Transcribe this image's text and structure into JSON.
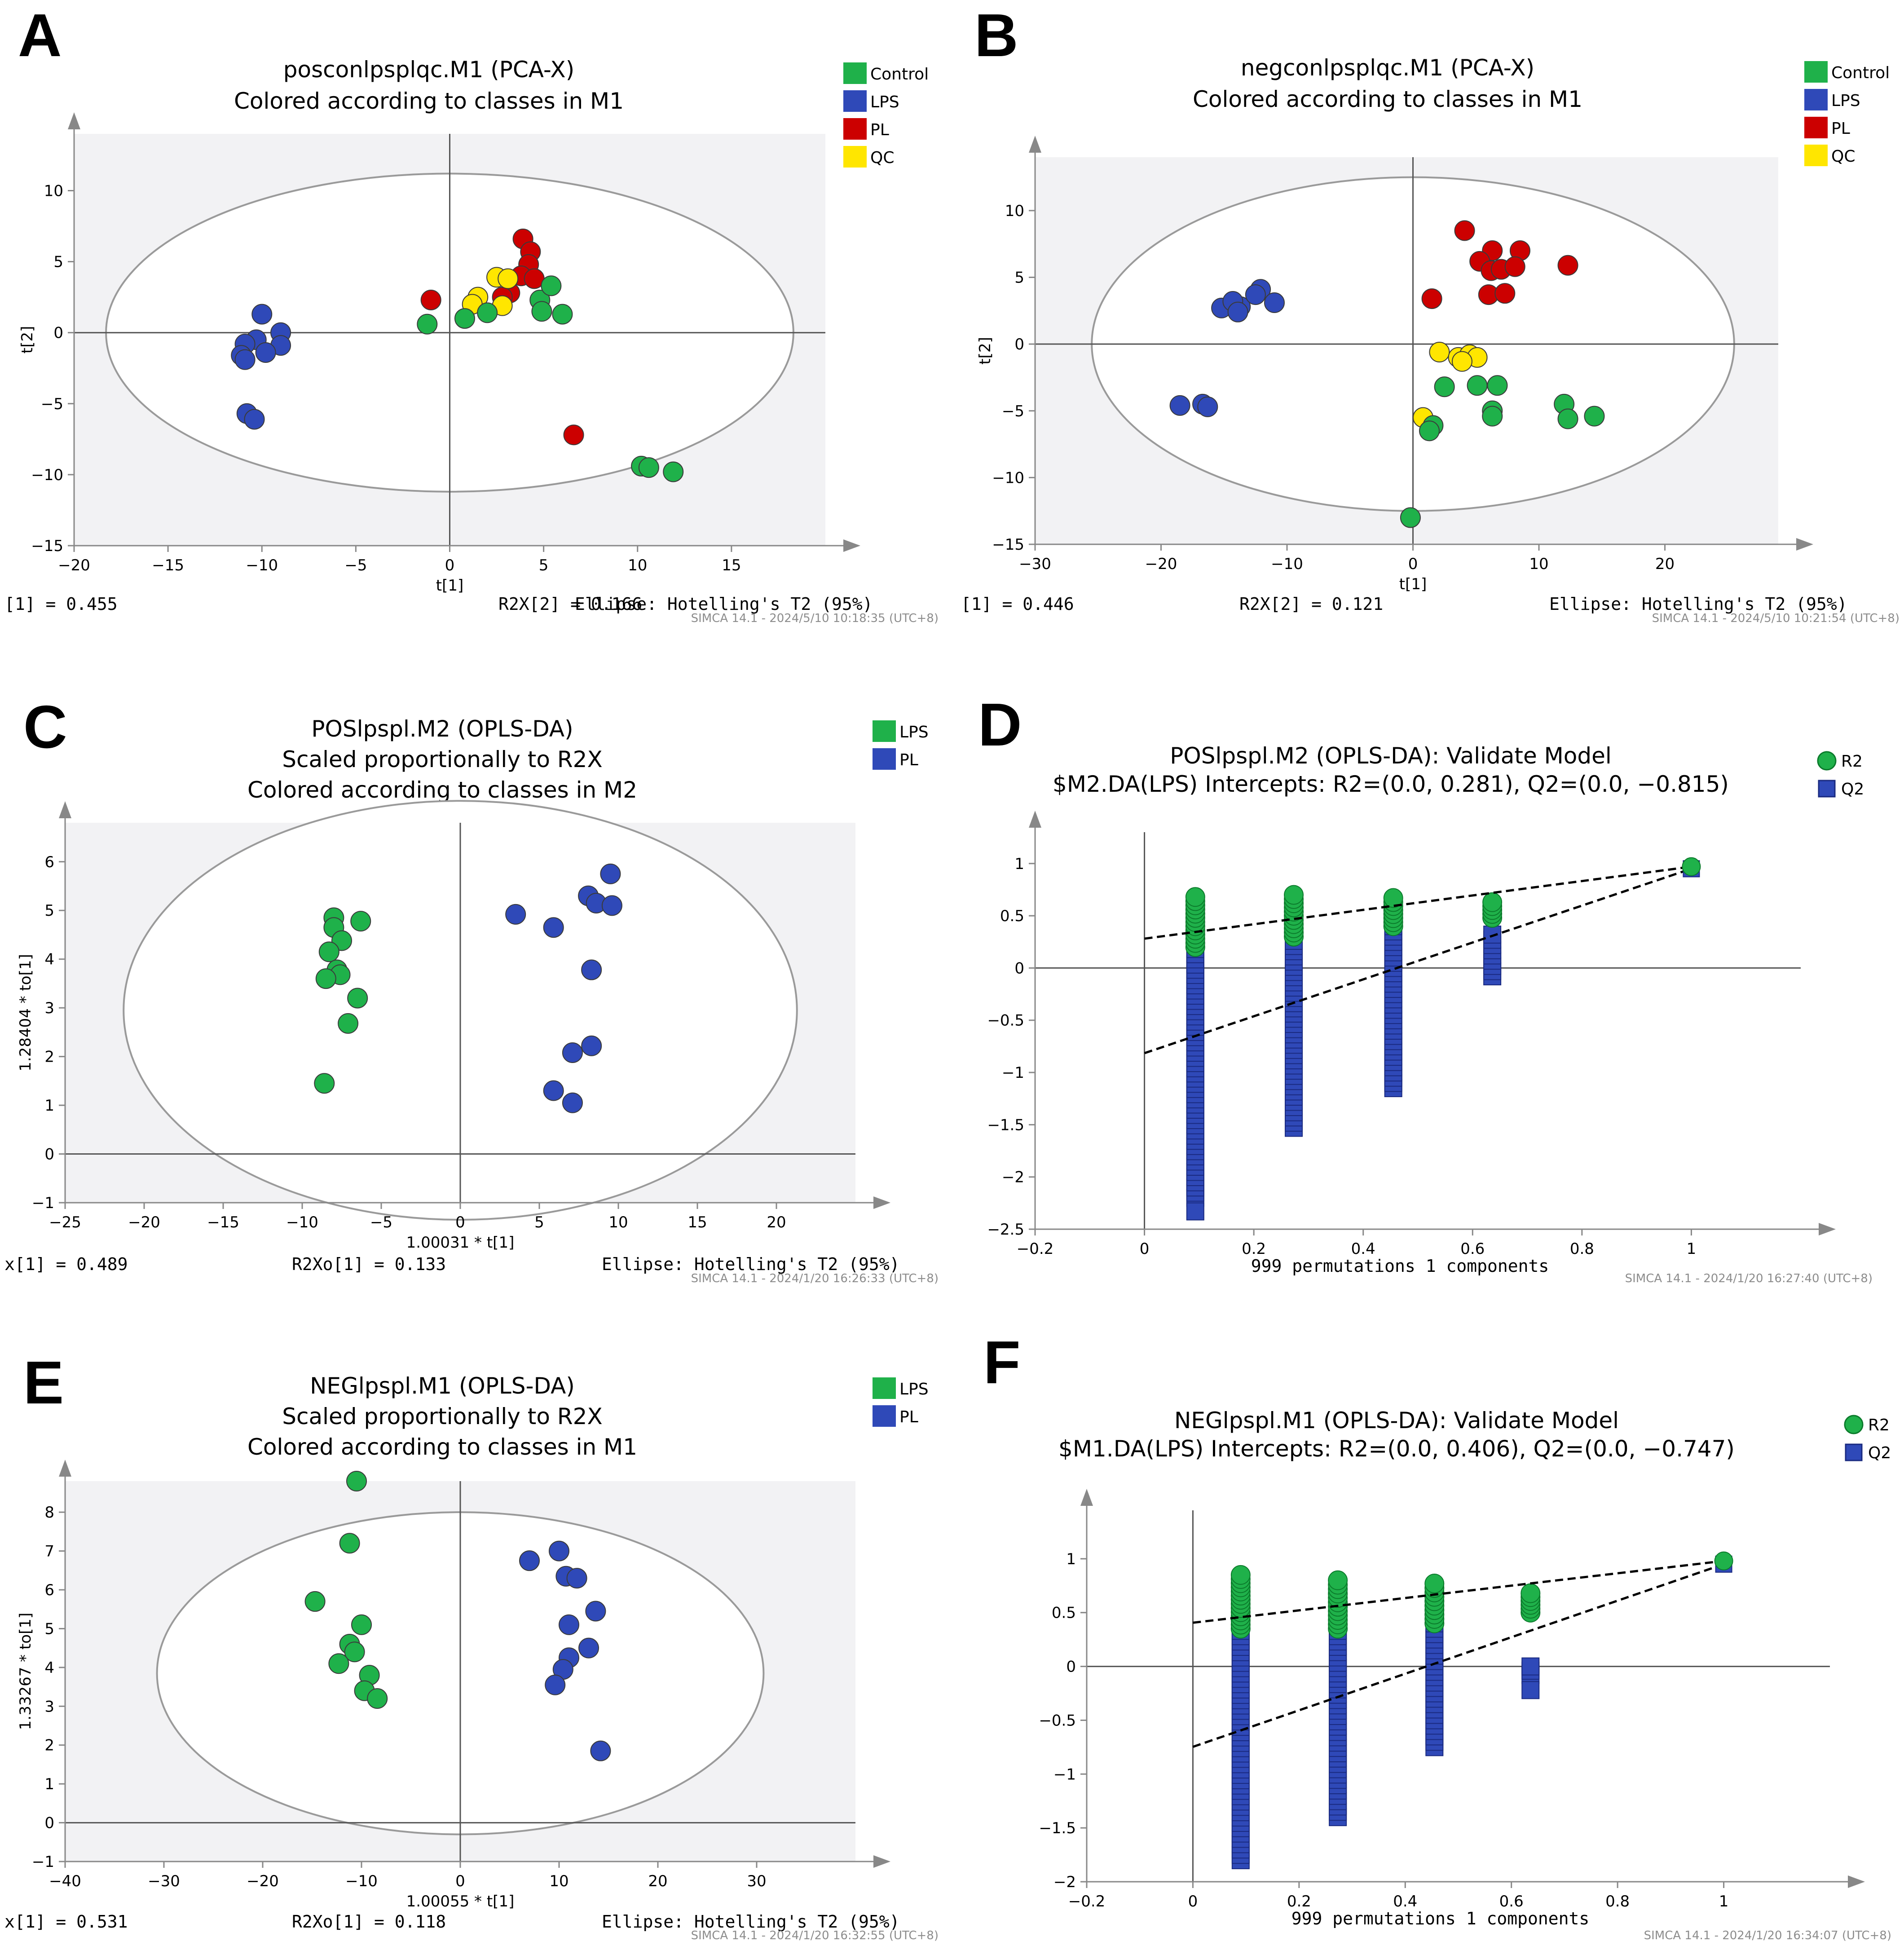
{
  "figure": {
    "colors": {
      "control": "#1fb14a",
      "lps": "#2f49b8",
      "pl": "#cc0000",
      "qc": "#ffe600",
      "plot_bg": "#f2f2f4",
      "ellipse": "#9a9a9a"
    }
  },
  "chart_data": [
    {
      "id": "A",
      "type": "scatter",
      "panel_letter": "A",
      "title": [
        "posconlpsplqc.M1 (PCA-X)",
        "Colored according to classes in M1"
      ],
      "xlabel": "t[1]",
      "ylabel": "t[2]",
      "xlim": [
        -20,
        20
      ],
      "ylim": [
        -15,
        14
      ],
      "xticks": [
        -20,
        -15,
        -10,
        -5,
        0,
        5,
        10,
        15
      ],
      "yticks": [
        -15,
        -10,
        -5,
        0,
        5,
        10
      ],
      "ellipse": {
        "cx": 0,
        "cy": 0,
        "rx": 18.3,
        "ry": 11.2
      },
      "legend": [
        "Control",
        "LPS",
        "PL",
        "QC"
      ],
      "footer": {
        "left": "[1] = 0.455",
        "mid": "R2X[2] = 0.166",
        "right": "Ellipse: Hotelling's T2 (95%)"
      },
      "stamp": "SIMCA 14.1 - 2024/5/10 10:18:35 (UTC+8)",
      "series": [
        {
          "name": "LPS",
          "color_key": "lps",
          "points": [
            [
              -10.0,
              1.3
            ],
            [
              -10.3,
              -0.5
            ],
            [
              -9.0,
              0.0
            ],
            [
              -9.0,
              -0.9
            ],
            [
              -10.9,
              -0.8
            ],
            [
              -11.1,
              -1.6
            ],
            [
              -10.9,
              -1.9
            ],
            [
              -9.8,
              -1.4
            ],
            [
              -10.8,
              -5.7
            ],
            [
              -10.4,
              -6.1
            ]
          ]
        },
        {
          "name": "PL",
          "color_key": "pl",
          "points": [
            [
              -1.0,
              2.3
            ],
            [
              3.9,
              6.6
            ],
            [
              4.3,
              5.7
            ],
            [
              4.2,
              4.8
            ],
            [
              3.8,
              4.0
            ],
            [
              4.5,
              3.8
            ],
            [
              3.2,
              2.8
            ],
            [
              2.8,
              2.5
            ],
            [
              6.6,
              -7.2
            ]
          ]
        },
        {
          "name": "QC",
          "color_key": "qc",
          "points": [
            [
              2.5,
              3.9
            ],
            [
              3.1,
              3.8
            ],
            [
              1.5,
              2.5
            ],
            [
              1.2,
              2.0
            ],
            [
              2.8,
              1.9
            ]
          ]
        },
        {
          "name": "Control",
          "color_key": "control",
          "points": [
            [
              -1.2,
              0.6
            ],
            [
              0.8,
              1.0
            ],
            [
              2.0,
              1.4
            ],
            [
              4.8,
              2.3
            ],
            [
              5.4,
              3.3
            ],
            [
              4.9,
              1.5
            ],
            [
              6.0,
              1.3
            ],
            [
              10.2,
              -9.4
            ],
            [
              10.6,
              -9.5
            ],
            [
              11.9,
              -9.8
            ]
          ]
        }
      ]
    },
    {
      "id": "B",
      "type": "scatter",
      "panel_letter": "B",
      "title": [
        "negconlpsplqc.M1 (PCA-X)",
        "Colored according to classes in M1"
      ],
      "xlabel": "t[1]",
      "ylabel": "t[2]",
      "xlim": [
        -30,
        29
      ],
      "ylim": [
        -15,
        14
      ],
      "xticks": [
        -30,
        -20,
        -10,
        0,
        10,
        20
      ],
      "yticks": [
        -15,
        -10,
        -5,
        0,
        5,
        10
      ],
      "ellipse": {
        "cx": 0,
        "cy": 0,
        "rx": 25.5,
        "ry": 12.5
      },
      "legend": [
        "Control",
        "LPS",
        "PL",
        "QC"
      ],
      "footer": {
        "left": "[1] = 0.446",
        "mid": "R2X[2] = 0.121",
        "right": "Ellipse: Hotelling's T2 (95%)"
      },
      "stamp": "SIMCA 14.1 - 2024/5/10 10:21:54 (UTC+8)",
      "series": [
        {
          "name": "LPS",
          "color_key": "lps",
          "points": [
            [
              -12.1,
              4.1
            ],
            [
              -13.7,
              2.8
            ],
            [
              -15.2,
              2.7
            ],
            [
              -14.3,
              3.2
            ],
            [
              -12.5,
              3.7
            ],
            [
              -11.0,
              3.1
            ],
            [
              -13.9,
              2.4
            ],
            [
              -18.5,
              -4.6
            ],
            [
              -16.7,
              -4.5
            ],
            [
              -16.3,
              -4.7
            ]
          ]
        },
        {
          "name": "PL",
          "color_key": "pl",
          "points": [
            [
              4.1,
              8.5
            ],
            [
              6.3,
              7.0
            ],
            [
              8.5,
              7.0
            ],
            [
              5.3,
              6.2
            ],
            [
              6.2,
              5.5
            ],
            [
              7.0,
              5.6
            ],
            [
              8.1,
              5.8
            ],
            [
              12.3,
              5.9
            ],
            [
              6.0,
              3.7
            ],
            [
              7.3,
              3.8
            ],
            [
              1.5,
              3.4
            ]
          ]
        },
        {
          "name": "QC",
          "color_key": "qc",
          "points": [
            [
              2.1,
              -0.6
            ],
            [
              3.6,
              -1.0
            ],
            [
              4.5,
              -0.8
            ],
            [
              5.1,
              -1.0
            ],
            [
              3.9,
              -1.3
            ],
            [
              0.8,
              -5.5
            ]
          ]
        },
        {
          "name": "Control",
          "color_key": "control",
          "points": [
            [
              2.5,
              -3.2
            ],
            [
              5.1,
              -3.1
            ],
            [
              6.7,
              -3.1
            ],
            [
              6.3,
              -5.0
            ],
            [
              6.3,
              -5.4
            ],
            [
              12.0,
              -4.5
            ],
            [
              12.3,
              -5.6
            ],
            [
              14.4,
              -5.4
            ],
            [
              1.6,
              -6.1
            ],
            [
              1.3,
              -6.5
            ],
            [
              -0.2,
              -13.0
            ]
          ]
        }
      ]
    },
    {
      "id": "C",
      "type": "scatter",
      "panel_letter": "C",
      "title": [
        "POSlpspl.M2 (OPLS-DA)",
        "Scaled proportionally to R2X",
        "Colored according to classes in M2"
      ],
      "xlabel": "1.00031 * t[1]",
      "ylabel": "1.28404 * to[1]",
      "xlim": [
        -25,
        25
      ],
      "ylim": [
        -1,
        6.8
      ],
      "xticks": [
        -25,
        -20,
        -15,
        -10,
        -5,
        0,
        5,
        10,
        15,
        20
      ],
      "yticks": [
        -1,
        0,
        1,
        2,
        3,
        4,
        5,
        6
      ],
      "ellipse": {
        "cx": 0,
        "cy": 2.95,
        "rx": 21.3,
        "ry": 4.3
      },
      "legend": [
        "LPS",
        "PL"
      ],
      "footer": {
        "left": "x[1] = 0.489",
        "mid": "R2Xo[1] = 0.133",
        "right": "Ellipse: Hotelling's T2 (95%)"
      },
      "stamp": "SIMCA 14.1 - 2024/1/20 16:26:33 (UTC+8)",
      "series": [
        {
          "name": "LPS",
          "color_key": "control",
          "points": [
            [
              -8.0,
              4.85
            ],
            [
              -8.0,
              4.65
            ],
            [
              -7.5,
              4.38
            ],
            [
              -6.3,
              4.78
            ],
            [
              -8.3,
              4.15
            ],
            [
              -7.8,
              3.78
            ],
            [
              -7.6,
              3.68
            ],
            [
              -8.5,
              3.6
            ],
            [
              -6.5,
              3.2
            ],
            [
              -7.1,
              2.68
            ],
            [
              -8.6,
              1.45
            ]
          ]
        },
        {
          "name": "PL",
          "color_key": "lps",
          "points": [
            [
              9.5,
              5.75
            ],
            [
              8.1,
              5.3
            ],
            [
              8.6,
              5.15
            ],
            [
              9.6,
              5.1
            ],
            [
              3.5,
              4.92
            ],
            [
              5.9,
              4.65
            ],
            [
              8.3,
              3.78
            ],
            [
              8.3,
              2.22
            ],
            [
              7.1,
              2.08
            ],
            [
              5.9,
              1.3
            ],
            [
              7.1,
              1.05
            ]
          ]
        }
      ]
    },
    {
      "id": "D",
      "type": "scatter",
      "panel_letter": "D",
      "title": [
        "POSlpspl.M2 (OPLS-DA): Validate Model",
        "$M2.DA(LPS) Intercepts: R2=(0.0, 0.281), Q2=(0.0, −0.815)"
      ],
      "xlabel": "999 permutations 1 components",
      "xlim": [
        -0.2,
        1.2
      ],
      "ylim": [
        -2.5,
        1.3
      ],
      "xticks": [
        -0.2,
        0,
        0.2,
        0.4,
        0.6,
        0.8,
        1
      ],
      "yticks": [
        -2.5,
        -2,
        -1.5,
        -1,
        -0.5,
        0,
        0.5,
        1
      ],
      "legend": [
        "R2",
        "Q2"
      ],
      "stamp": "SIMCA 14.1 - 2024/1/20 16:27:40 (UTC+8)",
      "intercepts": {
        "R2": 0.281,
        "Q2": -0.815
      },
      "permutation_columns": [
        {
          "x": 0.093,
          "R2_range": [
            0.2,
            0.68
          ],
          "Q2_range": [
            -2.2,
            0.38
          ],
          "Q2_extra": [
            -2.33
          ]
        },
        {
          "x": 0.273,
          "R2_range": [
            0.3,
            0.7
          ],
          "Q2_range": [
            -1.53,
            0.26
          ],
          "Q2_extra": []
        },
        {
          "x": 0.455,
          "R2_range": [
            0.4,
            0.67
          ],
          "Q2_range": [
            -1.15,
            0.45
          ],
          "Q2_extra": []
        },
        {
          "x": 0.636,
          "R2_range": [
            0.48,
            0.63
          ],
          "Q2_range": [
            -0.08,
            0.32
          ],
          "Q2_extra": []
        }
      ],
      "original": {
        "x": 1.0,
        "R2": 0.97,
        "Q2": 0.95
      }
    },
    {
      "id": "E",
      "type": "scatter",
      "panel_letter": "E",
      "title": [
        "NEGlpspl.M1 (OPLS-DA)",
        "Scaled proportionally to R2X",
        "Colored according to classes in M1"
      ],
      "xlabel": "1.00055 * t[1]",
      "ylabel": "1.33267 * to[1]",
      "xlim": [
        -40,
        40
      ],
      "ylim": [
        -1,
        8.8
      ],
      "xticks": [
        -40,
        -30,
        -20,
        -10,
        0,
        10,
        20,
        30
      ],
      "yticks": [
        -1,
        0,
        1,
        2,
        3,
        4,
        5,
        6,
        7,
        8
      ],
      "ellipse": {
        "cx": 0,
        "cy": 3.85,
        "rx": 30.7,
        "ry": 4.15
      },
      "legend": [
        "LPS",
        "PL"
      ],
      "footer": {
        "left": "x[1] = 0.531",
        "mid": "R2Xo[1] = 0.118",
        "right": "Ellipse: Hotelling's T2 (95%)"
      },
      "stamp": "SIMCA 14.1 - 2024/1/20 16:32:55 (UTC+8)",
      "series": [
        {
          "name": "LPS",
          "color_key": "control",
          "points": [
            [
              -10.5,
              8.8
            ],
            [
              -11.2,
              7.2
            ],
            [
              -14.7,
              5.7
            ],
            [
              -10.0,
              5.1
            ],
            [
              -11.2,
              4.6
            ],
            [
              -10.7,
              4.4
            ],
            [
              -12.3,
              4.1
            ],
            [
              -9.2,
              3.8
            ],
            [
              -9.7,
              3.4
            ],
            [
              -8.4,
              3.2
            ]
          ]
        },
        {
          "name": "PL",
          "color_key": "lps",
          "points": [
            [
              7.0,
              6.75
            ],
            [
              10.0,
              7.0
            ],
            [
              10.7,
              6.35
            ],
            [
              11.8,
              6.3
            ],
            [
              13.7,
              5.45
            ],
            [
              11.0,
              5.1
            ],
            [
              13.0,
              4.5
            ],
            [
              11.0,
              4.25
            ],
            [
              10.4,
              3.95
            ],
            [
              9.6,
              3.55
            ],
            [
              14.2,
              1.85
            ]
          ]
        }
      ]
    },
    {
      "id": "F",
      "type": "scatter",
      "panel_letter": "F",
      "title": [
        "NEGlpspl.M1 (OPLS-DA): Validate Model",
        "$M1.DA(LPS) Intercepts: R2=(0.0, 0.406), Q2=(0.0, −0.747)"
      ],
      "xlabel": "999 permutations 1 components",
      "xlim": [
        -0.2,
        1.2
      ],
      "ylim": [
        -2,
        1.45
      ],
      "xticks": [
        -0.2,
        0,
        0.2,
        0.4,
        0.6,
        0.8,
        1
      ],
      "yticks": [
        -2,
        -1.5,
        -1,
        -0.5,
        0,
        0.5,
        1
      ],
      "legend": [
        "R2",
        "Q2"
      ],
      "stamp": "SIMCA 14.1 - 2024/1/20 16:34:07 (UTC+8)",
      "intercepts": {
        "R2": 0.406,
        "Q2": -0.747
      },
      "permutation_columns": [
        {
          "x": 0.09,
          "R2_range": [
            0.35,
            0.85
          ],
          "Q2_range": [
            -1.8,
            0.38
          ],
          "Q2_extra": []
        },
        {
          "x": 0.273,
          "R2_range": [
            0.35,
            0.8
          ],
          "Q2_range": [
            -1.4,
            0.38
          ],
          "Q2_extra": []
        },
        {
          "x": 0.455,
          "R2_range": [
            0.4,
            0.77
          ],
          "Q2_range": [
            -0.75,
            0.55
          ],
          "Q2_extra": []
        },
        {
          "x": 0.636,
          "R2_range": [
            0.5,
            0.68
          ],
          "Q2_range": [
            -0.08,
            0.0
          ],
          "Q2_extra": [
            -0.22
          ]
        }
      ],
      "original": {
        "x": 1.0,
        "R2": 0.98,
        "Q2": 0.95
      }
    }
  ]
}
